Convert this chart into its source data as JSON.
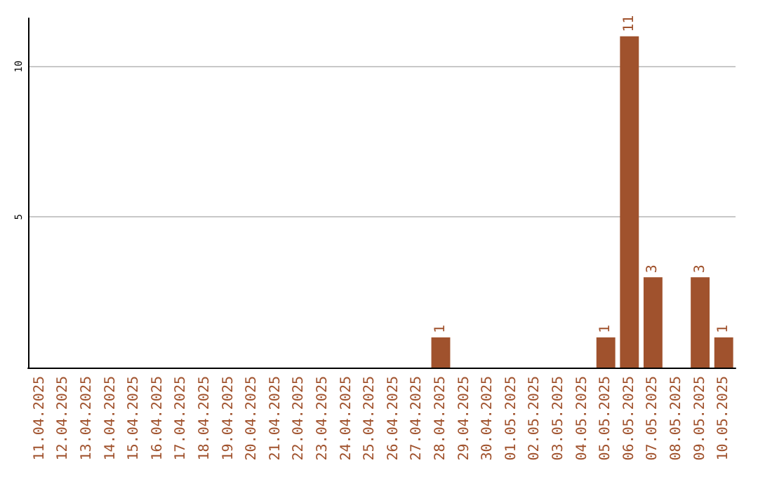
{
  "chart_data": {
    "type": "bar",
    "categories": [
      "11.04.2025",
      "12.04.2025",
      "13.04.2025",
      "14.04.2025",
      "15.04.2025",
      "16.04.2025",
      "17.04.2025",
      "18.04.2025",
      "19.04.2025",
      "20.04.2025",
      "21.04.2025",
      "22.04.2025",
      "23.04.2025",
      "24.04.2025",
      "25.04.2025",
      "26.04.2025",
      "27.04.2025",
      "28.04.2025",
      "29.04.2025",
      "30.04.2025",
      "01.05.2025",
      "02.05.2025",
      "03.05.2025",
      "04.05.2025",
      "05.05.2025",
      "06.05.2025",
      "07.05.2025",
      "08.05.2025",
      "09.05.2025",
      "10.05.2025"
    ],
    "values": [
      0,
      0,
      0,
      0,
      0,
      0,
      0,
      0,
      0,
      0,
      0,
      0,
      0,
      0,
      0,
      0,
      0,
      1,
      0,
      0,
      0,
      0,
      0,
      0,
      1,
      11,
      3,
      0,
      3,
      1
    ],
    "value_labels": [
      null,
      null,
      null,
      null,
      null,
      null,
      null,
      null,
      null,
      null,
      null,
      null,
      null,
      null,
      null,
      null,
      null,
      "1",
      null,
      null,
      null,
      null,
      null,
      null,
      "1",
      "11",
      "3",
      null,
      "3",
      "1"
    ],
    "color": "#a0522d",
    "ylim": [
      0,
      11.6
    ],
    "yticks": [
      5,
      10
    ],
    "grid": "y"
  }
}
